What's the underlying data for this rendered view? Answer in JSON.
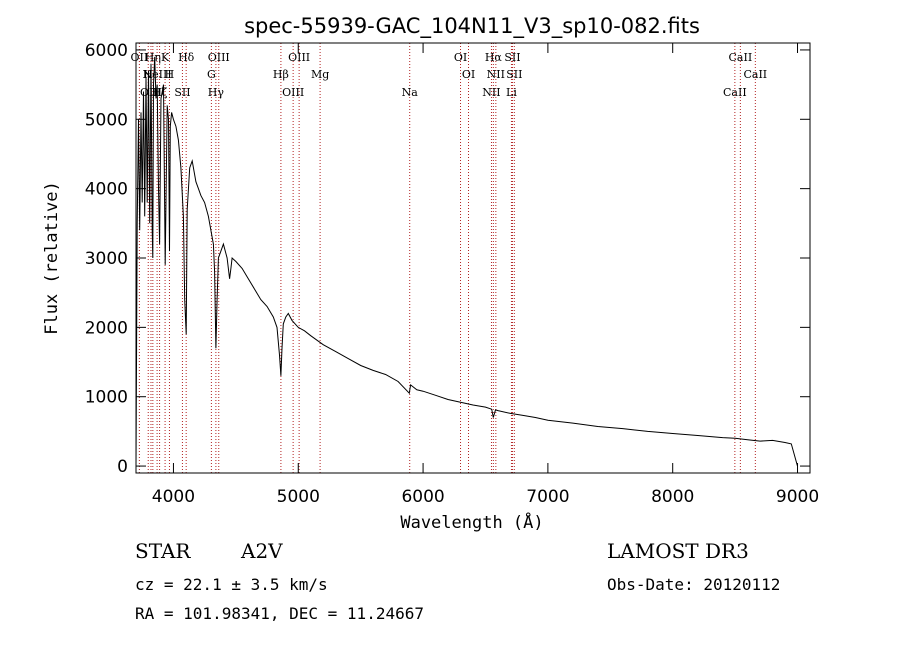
{
  "chart_data": {
    "type": "line",
    "title": "spec-55939-GAC_104N11_V3_sp10-082.fits",
    "xlabel": "Wavelength (Å)",
    "ylabel": "Flux (relative)",
    "xlim": [
      3700,
      9100
    ],
    "ylim": [
      -100,
      6100
    ],
    "xticks": [
      4000,
      5000,
      6000,
      7000,
      8000,
      9000
    ],
    "yticks": [
      0,
      1000,
      2000,
      3000,
      4000,
      5000,
      6000
    ],
    "series": [
      {
        "name": "flux",
        "x": [
          3700,
          3710,
          3720,
          3730,
          3740,
          3750,
          3760,
          3770,
          3780,
          3790,
          3800,
          3810,
          3820,
          3830,
          3835,
          3840,
          3850,
          3860,
          3870,
          3880,
          3889,
          3900,
          3920,
          3934,
          3950,
          3960,
          3968,
          3975,
          3985,
          4000,
          4020,
          4040,
          4060,
          4080,
          4090,
          4102,
          4110,
          4130,
          4150,
          4180,
          4200,
          4220,
          4250,
          4280,
          4300,
          4320,
          4330,
          4340,
          4350,
          4360,
          4380,
          4400,
          4430,
          4450,
          4460,
          4470,
          4500,
          4550,
          4600,
          4650,
          4700,
          4750,
          4800,
          4830,
          4850,
          4861,
          4870,
          4880,
          4900,
          4920,
          4950,
          5000,
          5050,
          5100,
          5200,
          5300,
          5400,
          5500,
          5600,
          5700,
          5800,
          5890,
          5900,
          5950,
          6000,
          6100,
          6200,
          6300,
          6400,
          6500,
          6550,
          6563,
          6580,
          6600,
          6700,
          6800,
          6900,
          7000,
          7200,
          7400,
          7600,
          7800,
          8000,
          8200,
          8400,
          8500,
          8600,
          8700,
          8800,
          8900,
          8950,
          9000
        ],
        "y": [
          0,
          3500,
          5000,
          3400,
          5100,
          3800,
          5400,
          3600,
          5600,
          3800,
          5700,
          3500,
          5800,
          3400,
          3000,
          5500,
          5900,
          5300,
          5500,
          4000,
          3200,
          5300,
          5500,
          2900,
          5200,
          5000,
          3100,
          4900,
          5100,
          5000,
          4900,
          4700,
          4300,
          3600,
          2400,
          1900,
          3700,
          4300,
          4400,
          4100,
          4000,
          3900,
          3800,
          3600,
          3400,
          3200,
          2800,
          1700,
          2400,
          3000,
          3100,
          3200,
          3000,
          2700,
          2850,
          3000,
          2950,
          2850,
          2700,
          2550,
          2400,
          2300,
          2150,
          2000,
          1600,
          1300,
          1700,
          2050,
          2150,
          2200,
          2100,
          2000,
          1950,
          1880,
          1750,
          1650,
          1550,
          1450,
          1380,
          1320,
          1220,
          1050,
          1170,
          1100,
          1080,
          1020,
          960,
          920,
          880,
          850,
          820,
          700,
          810,
          800,
          760,
          730,
          700,
          660,
          620,
          570,
          540,
          500,
          470,
          440,
          410,
          400,
          380,
          360,
          370,
          340,
          320,
          0
        ]
      }
    ],
    "lines": [
      {
        "wavelength": 3727,
        "label": "OII"
      },
      {
        "wavelength": 3798,
        "label": "H"
      },
      {
        "wavelength": 3820,
        "label": "OIII"
      },
      {
        "wavelength": 3835,
        "label": "Hη"
      },
      {
        "wavelength": 3869,
        "label": "NeIII"
      },
      {
        "wavelength": 3889,
        "label": "Hζ"
      },
      {
        "wavelength": 3933,
        "label": "K"
      },
      {
        "wavelength": 3968,
        "label": "H"
      },
      {
        "wavelength": 4072,
        "label": "SII"
      },
      {
        "wavelength": 4102,
        "label": "Hδ"
      },
      {
        "wavelength": 4304,
        "label": "G"
      },
      {
        "wavelength": 4340,
        "label": "Hγ"
      },
      {
        "wavelength": 4363,
        "label": "OIII"
      },
      {
        "wavelength": 4861,
        "label": "Hβ"
      },
      {
        "wavelength": 4959,
        "label": "OIII"
      },
      {
        "wavelength": 5007,
        "label": "OIII"
      },
      {
        "wavelength": 5175,
        "label": "Mg"
      },
      {
        "wavelength": 5893,
        "label": "Na"
      },
      {
        "wavelength": 6300,
        "label": "OI"
      },
      {
        "wavelength": 6364,
        "label": "OI"
      },
      {
        "wavelength": 6548,
        "label": "NII"
      },
      {
        "wavelength": 6563,
        "label": "Hα"
      },
      {
        "wavelength": 6583,
        "label": "NII"
      },
      {
        "wavelength": 6708,
        "label": "Li"
      },
      {
        "wavelength": 6716,
        "label": "SII"
      },
      {
        "wavelength": 6731,
        "label": "SII"
      },
      {
        "wavelength": 8498,
        "label": "CaII"
      },
      {
        "wavelength": 8542,
        "label": "CaII"
      },
      {
        "wavelength": 8662,
        "label": "CaII"
      }
    ]
  },
  "info": {
    "class": "STAR",
    "subclass": "A2V",
    "survey": "LAMOST DR3",
    "cz": "cz = 22.1 ± 3.5 km/s",
    "obs_date": "Obs-Date: 20120112",
    "coords": "RA = 101.98341, DEC =  11.24667"
  }
}
